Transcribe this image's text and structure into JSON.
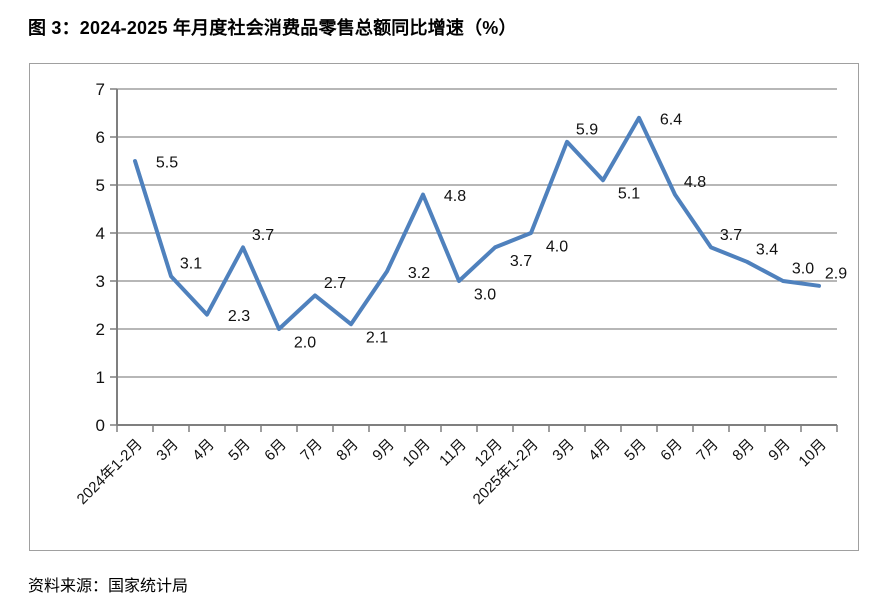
{
  "title": "图 3：2024-2025 年月度社会消费品零售总额同比增速（%）",
  "source": "资料来源：国家统计局",
  "chart_data": {
    "type": "line",
    "title": "图 3：2024-2025 年月度社会消费品零售总额同比增速（%）",
    "xlabel": "",
    "ylabel": "",
    "categories": [
      "2024年1-2月",
      "3月",
      "4月",
      "5月",
      "6月",
      "7月",
      "8月",
      "9月",
      "10月",
      "11月",
      "12月",
      "2025年1-2月",
      "3月",
      "4月",
      "5月",
      "6月",
      "7月",
      "8月",
      "9月",
      "10月"
    ],
    "values": [
      5.5,
      3.1,
      2.3,
      3.7,
      2.0,
      2.7,
      2.1,
      3.2,
      4.8,
      3.0,
      3.7,
      4.0,
      5.9,
      5.1,
      6.4,
      4.8,
      3.7,
      3.4,
      3.0,
      2.9
    ],
    "data_labels": [
      "5.5",
      "3.1",
      "2.3",
      "3.7",
      "2.0",
      "2.7",
      "2.1",
      "3.2",
      "4.8",
      "3.0",
      "3.7",
      "4.0",
      "5.9",
      "5.1",
      "6.4",
      "4.8",
      "3.7",
      "3.4",
      "3.0",
      "2.9"
    ],
    "label_placements": [
      "right",
      "above",
      "right",
      "above",
      "below",
      "above",
      "below",
      "right",
      "right",
      "below",
      "below",
      "below",
      "above",
      "below",
      "right",
      "above",
      "above",
      "above",
      "above",
      "above"
    ],
    "ylim": [
      0,
      7
    ],
    "yticks": [
      0,
      1,
      2,
      3,
      4,
      5,
      6,
      7
    ],
    "grid": "horizontal",
    "legend_position": "none",
    "line_color": "#4F81BD",
    "grid_color": "#8C8C8C",
    "axis_color": "#7F7F7F",
    "text_color": "#111111",
    "frame_border_color": "#A0A0A0"
  }
}
